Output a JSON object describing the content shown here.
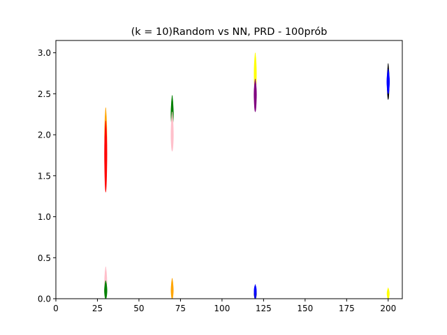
{
  "chart_data": {
    "type": "violin",
    "title": "(k = 10)Random vs NN, PRD - 100prób",
    "xlabel": "",
    "ylabel": "",
    "xlim": [
      0,
      208.5
    ],
    "ylim": [
      0,
      3.15
    ],
    "xticks": [
      0,
      25,
      50,
      75,
      100,
      125,
      150,
      175,
      200
    ],
    "yticks": [
      0.0,
      0.5,
      1.0,
      1.5,
      2.0,
      2.5,
      3.0
    ],
    "xtick_labels": [
      "0",
      "25",
      "50",
      "75",
      "100",
      "125",
      "150",
      "175",
      "200"
    ],
    "ytick_labels": [
      "0.0",
      "0.5",
      "1.0",
      "1.5",
      "2.0",
      "2.5",
      "3.0"
    ],
    "grid": false,
    "legend": "none",
    "violins": [
      {
        "x": 30,
        "color": "#ffa500",
        "min": 1.55,
        "max": 2.33,
        "center": 2.0,
        "halfwidth": 1.4
      },
      {
        "x": 30,
        "color": "#ff0000",
        "min": 1.3,
        "max": 2.17,
        "center": 1.8,
        "halfwidth": 1.5
      },
      {
        "x": 30,
        "color": "#ffc0cb",
        "min": 0.0,
        "max": 0.39,
        "center": 0.2,
        "halfwidth": 1.4
      },
      {
        "x": 30,
        "color": "#008000",
        "min": 0.0,
        "max": 0.22,
        "center": 0.1,
        "halfwidth": 1.6
      },
      {
        "x": 70,
        "color": "#008000",
        "min": 2.1,
        "max": 2.48,
        "center": 2.25,
        "halfwidth": 1.5
      },
      {
        "x": 70,
        "color": "#ffc0cb",
        "min": 1.8,
        "max": 2.28,
        "center": 2.0,
        "halfwidth": 1.5
      },
      {
        "x": 70,
        "color": "#ffa500",
        "min": 0.0,
        "max": 0.25,
        "center": 0.1,
        "halfwidth": 1.4
      },
      {
        "x": 120,
        "color": "#ffff00",
        "min": 2.5,
        "max": 3.0,
        "center": 2.75,
        "halfwidth": 1.4
      },
      {
        "x": 120,
        "color": "#800080",
        "min": 2.28,
        "max": 2.68,
        "center": 2.5,
        "halfwidth": 1.5
      },
      {
        "x": 120,
        "color": "#000000",
        "min": 0.0,
        "max": 0.15,
        "center": 0.06,
        "halfwidth": 1.4
      },
      {
        "x": 120,
        "color": "#0000ff",
        "min": 0.0,
        "max": 0.17,
        "center": 0.1,
        "halfwidth": 1.4
      },
      {
        "x": 200,
        "color": "#000000",
        "min": 2.43,
        "max": 2.87,
        "center": 2.65,
        "halfwidth": 1.3
      },
      {
        "x": 200,
        "color": "#0000ff",
        "min": 2.5,
        "max": 2.8,
        "center": 2.65,
        "halfwidth": 1.6
      },
      {
        "x": 200,
        "color": "#ffff00",
        "min": 0.0,
        "max": 0.13,
        "center": 0.06,
        "halfwidth": 1.4
      }
    ]
  }
}
